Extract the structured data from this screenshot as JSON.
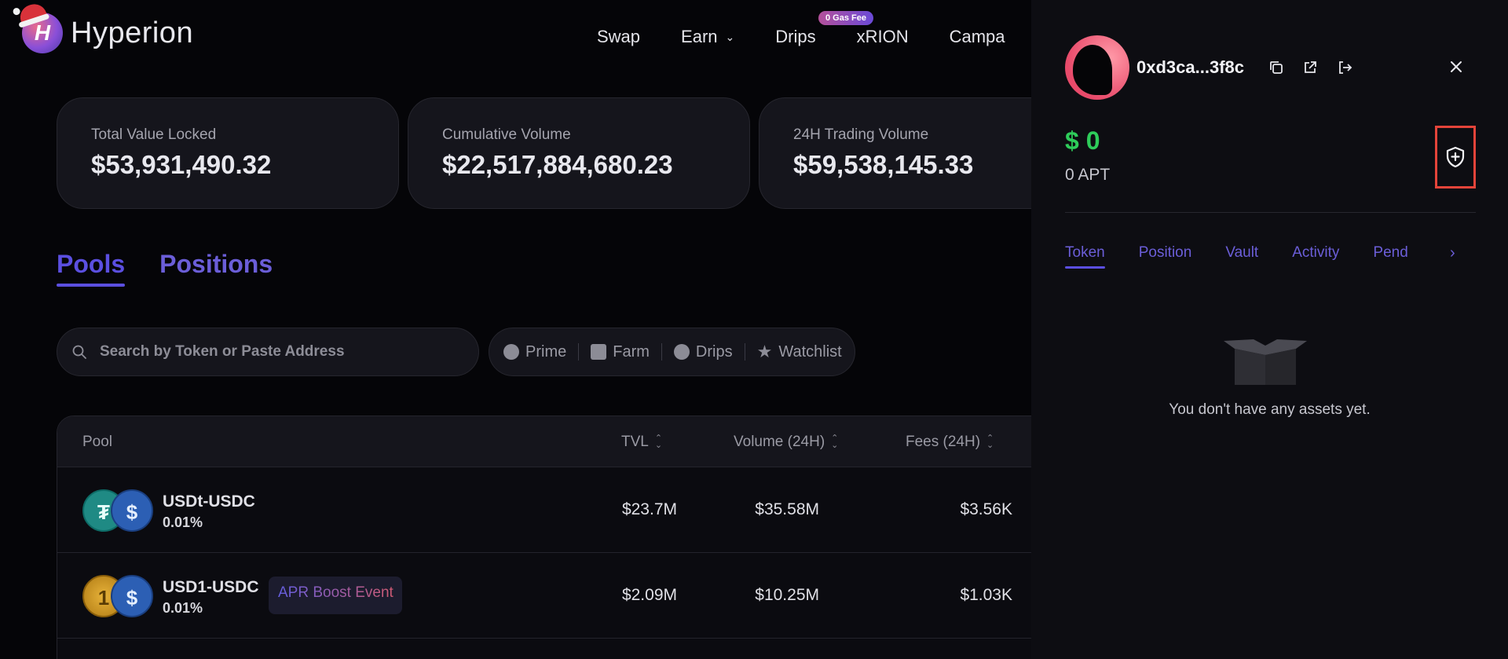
{
  "brand": {
    "name": "Hyperion"
  },
  "nav": {
    "items": [
      "Swap",
      "Earn",
      "Drips",
      "xRION",
      "Campa"
    ],
    "badge": "0 Gas Fee"
  },
  "stats": [
    {
      "label": "Total Value Locked",
      "value": "$53,931,490.32"
    },
    {
      "label": "Cumulative Volume",
      "value": "$22,517,884,680.23"
    },
    {
      "label": "24H Trading Volume",
      "value": "$59,538,145.33"
    }
  ],
  "tabs": [
    "Pools",
    "Positions"
  ],
  "search": {
    "placeholder": "Search by Token or Paste Address"
  },
  "filters": [
    "Prime",
    "Farm",
    "Drips",
    "Watchlist"
  ],
  "table": {
    "headers": {
      "pool": "Pool",
      "tvl": "TVL",
      "volume": "Volume (24H)",
      "fees": "Fees (24H)"
    },
    "rows": [
      {
        "pair": "USDt-USDC",
        "fee": "0.01%",
        "tvl": "$23.7M",
        "volume": "$35.58M",
        "fees": "$3.56K"
      },
      {
        "pair": "USD1-USDC",
        "fee": "0.01%",
        "badge": "APR Boost Event",
        "tvl": "$2.09M",
        "volume": "$10.25M",
        "fees": "$1.03K"
      }
    ]
  },
  "wallet": {
    "address": "0xd3ca...3f8c",
    "balance_usd": "$ 0",
    "balance_apt": "0 APT",
    "tabs": [
      "Token",
      "Position",
      "Vault",
      "Activity",
      "Pend"
    ],
    "empty_message": "You don't have any assets yet."
  },
  "colors": {
    "accent": "#5b4fe0",
    "positive": "#2ecc5a",
    "highlight": "#e4443a"
  }
}
